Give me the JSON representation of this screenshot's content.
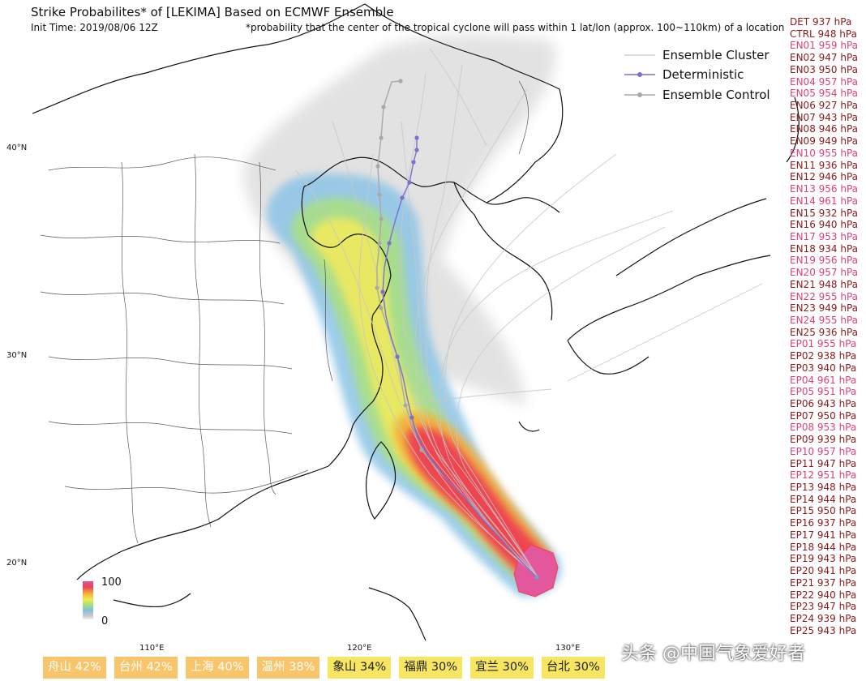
{
  "title": "Strike Probabilites* of [LEKIMA] Based on ECMWF Ensemble",
  "init_time": "Init Time: 2019/08/06 12Z",
  "footnote": "*probability that the center of the tropical cyclone will pass within 1 lat/lon (approx. 100~110km) of a location",
  "legend": {
    "cluster": "Ensemble Cluster",
    "deterministic": "Deterministic",
    "control": "Ensemble Control"
  },
  "colors": {
    "normal_label": "#8b1a1a",
    "highlight_label": "#e0407a",
    "deterministic": "#7b6fd0",
    "control": "#a8a8a8",
    "cluster": "#cfcfcf"
  },
  "members": [
    {
      "text": "DET 937 hPa",
      "hl": false
    },
    {
      "text": "CTRL 948 hPa",
      "hl": false
    },
    {
      "text": "EN01 959 hPa",
      "hl": true
    },
    {
      "text": "EN02 947 hPa",
      "hl": false
    },
    {
      "text": "EN03 950 hPa",
      "hl": false
    },
    {
      "text": "EN04 957 hPa",
      "hl": true
    },
    {
      "text": "EN05 954 hPa",
      "hl": true
    },
    {
      "text": "EN06 927 hPa",
      "hl": false
    },
    {
      "text": "EN07 943 hPa",
      "hl": false
    },
    {
      "text": "EN08 946 hPa",
      "hl": false
    },
    {
      "text": "EN09 949 hPa",
      "hl": false
    },
    {
      "text": "EN10 955 hPa",
      "hl": true
    },
    {
      "text": "EN11 936 hPa",
      "hl": false
    },
    {
      "text": "EN12 946 hPa",
      "hl": false
    },
    {
      "text": "EN13 956 hPa",
      "hl": true
    },
    {
      "text": "EN14 961 hPa",
      "hl": true
    },
    {
      "text": "EN15 932 hPa",
      "hl": false
    },
    {
      "text": "EN16 940 hPa",
      "hl": false
    },
    {
      "text": "EN17 953 hPa",
      "hl": true
    },
    {
      "text": "EN18 934 hPa",
      "hl": false
    },
    {
      "text": "EN19 956 hPa",
      "hl": true
    },
    {
      "text": "EN20 957 hPa",
      "hl": true
    },
    {
      "text": "EN21 948 hPa",
      "hl": false
    },
    {
      "text": "EN22 955 hPa",
      "hl": true
    },
    {
      "text": "EN23 949 hPa",
      "hl": false
    },
    {
      "text": "EN24 955 hPa",
      "hl": true
    },
    {
      "text": "EN25 936 hPa",
      "hl": false
    },
    {
      "text": "EP01 955 hPa",
      "hl": true
    },
    {
      "text": "EP02 938 hPa",
      "hl": false
    },
    {
      "text": "EP03 940 hPa",
      "hl": false
    },
    {
      "text": "EP04 961 hPa",
      "hl": true
    },
    {
      "text": "EP05 951 hPa",
      "hl": true
    },
    {
      "text": "EP06 943 hPa",
      "hl": false
    },
    {
      "text": "EP07 950 hPa",
      "hl": false
    },
    {
      "text": "EP08 953 hPa",
      "hl": true
    },
    {
      "text": "EP09 939 hPa",
      "hl": false
    },
    {
      "text": "EP10 957 hPa",
      "hl": true
    },
    {
      "text": "EP11 947 hPa",
      "hl": false
    },
    {
      "text": "EP12 951 hPa",
      "hl": true
    },
    {
      "text": "EP13 948 hPa",
      "hl": false
    },
    {
      "text": "EP14 944 hPa",
      "hl": false
    },
    {
      "text": "EP15 950 hPa",
      "hl": false
    },
    {
      "text": "EP16 937 hPa",
      "hl": false
    },
    {
      "text": "EP17 941 hPa",
      "hl": false
    },
    {
      "text": "EP18 944 hPa",
      "hl": false
    },
    {
      "text": "EP19 943 hPa",
      "hl": false
    },
    {
      "text": "EP20 941 hPa",
      "hl": false
    },
    {
      "text": "EP21 937 hPa",
      "hl": false
    },
    {
      "text": "EP22 940 hPa",
      "hl": false
    },
    {
      "text": "EP23 947 hPa",
      "hl": false
    },
    {
      "text": "EP24 939 hPa",
      "hl": false
    },
    {
      "text": "EP25 943 hPa",
      "hl": false
    }
  ],
  "lat_labels": [
    "40°N",
    "30°N",
    "20°N"
  ],
  "lon_labels": [
    "110°E",
    "120°E",
    "130°E"
  ],
  "colorbar": {
    "max": "100",
    "min": "0"
  },
  "cities": [
    {
      "text": "舟山 42%",
      "color": "#f9c56a",
      "dark": false
    },
    {
      "text": "台州 42%",
      "color": "#f9c56a",
      "dark": false
    },
    {
      "text": "上海 40%",
      "color": "#f9c56a",
      "dark": false
    },
    {
      "text": "温州 38%",
      "color": "#f9c56a",
      "dark": false
    },
    {
      "text": "象山 34%",
      "color": "#f6e661",
      "dark": true
    },
    {
      "text": "福鼎 30%",
      "color": "#f6e661",
      "dark": true
    },
    {
      "text": "宜兰 30%",
      "color": "#f6e661",
      "dark": true
    },
    {
      "text": "台北 30%",
      "color": "#f6e661",
      "dark": true
    }
  ],
  "watermark": "头条 @中国气象爱好者"
}
